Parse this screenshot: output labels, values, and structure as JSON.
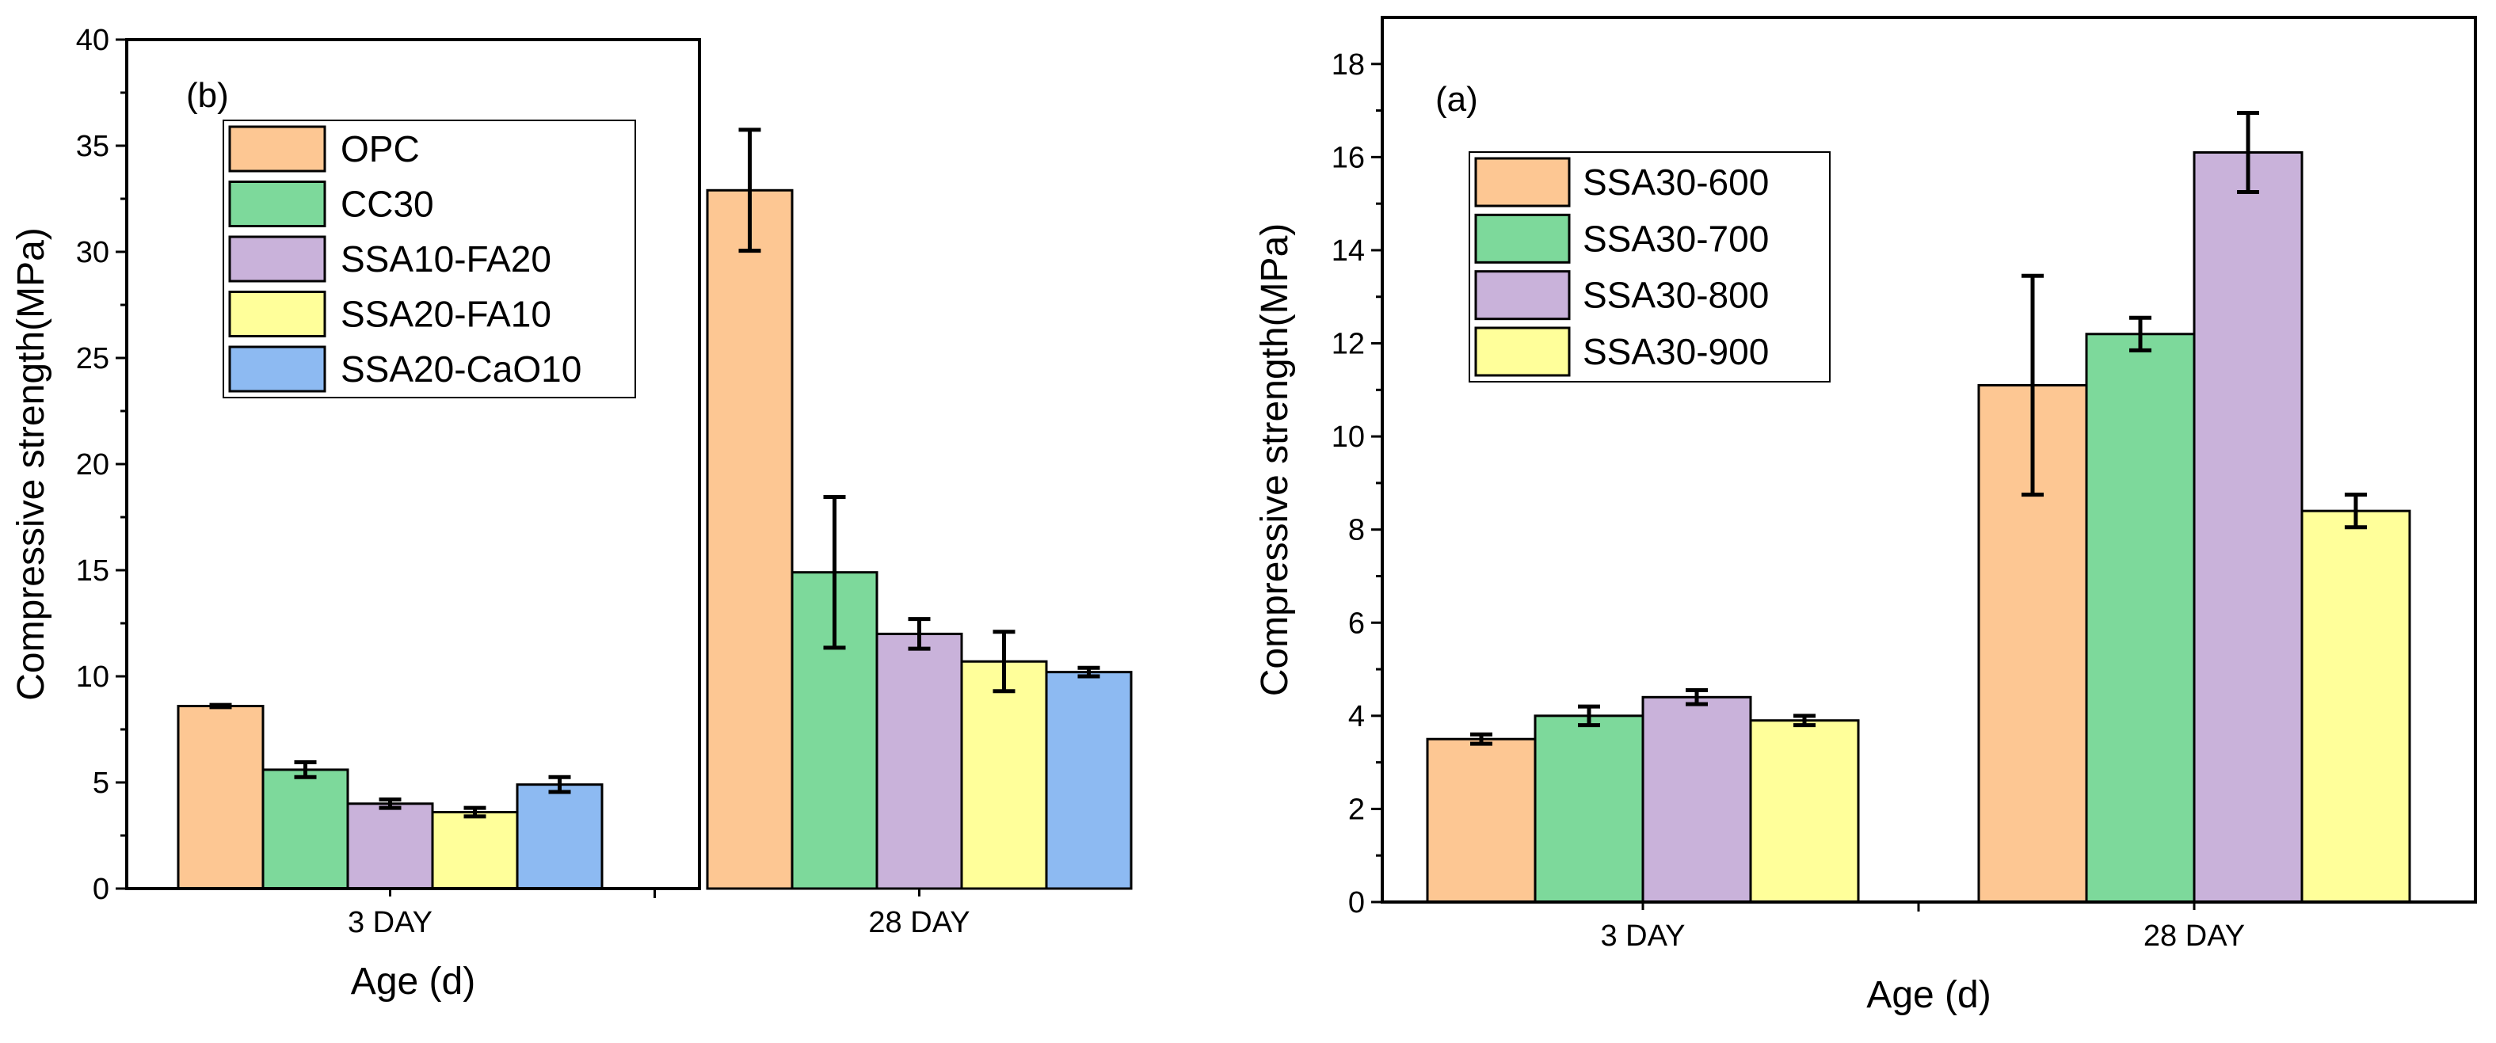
{
  "chart_data": [
    {
      "type": "bar",
      "panel_label": "(b)",
      "xlabel": "Age (d)",
      "ylabel": "Compressive strength(MPa)",
      "ylim": [
        0,
        40
      ],
      "yticks": [
        "0",
        "5",
        "10",
        "15",
        "20",
        "25",
        "30",
        "35",
        "40"
      ],
      "yminor": true,
      "categories": [
        "3 DAY",
        "28 DAY"
      ],
      "legend_position": "top-left",
      "series": [
        {
          "name": "OPC",
          "color": "#FDC793",
          "values": [
            8.6,
            32.9
          ],
          "errors": [
            0.05,
            2.85
          ]
        },
        {
          "name": "CC30",
          "color": "#7DD99B",
          "values": [
            5.6,
            14.9
          ],
          "errors": [
            0.35,
            3.55
          ]
        },
        {
          "name": "SSA10-FA20",
          "color": "#C9B2DA",
          "values": [
            4.0,
            12.0
          ],
          "errors": [
            0.2,
            0.7
          ]
        },
        {
          "name": "SSA20-FA10",
          "color": "#FFFF9A",
          "values": [
            3.6,
            10.7
          ],
          "errors": [
            0.2,
            1.4
          ]
        },
        {
          "name": "SSA20-CaO10",
          "color": "#8DBAF2",
          "values": [
            4.9,
            10.2
          ],
          "errors": [
            0.35,
            0.2
          ]
        }
      ]
    },
    {
      "type": "bar",
      "panel_label": "(a)",
      "xlabel": "Age (d)",
      "ylabel": "Compressive strength(MPa)",
      "ylim": [
        0,
        19
      ],
      "yticks": [
        "0",
        "2",
        "4",
        "6",
        "8",
        "10",
        "12",
        "14",
        "16",
        "18"
      ],
      "yminor": true,
      "categories": [
        "3 DAY",
        "28 DAY"
      ],
      "legend_position": "top-left",
      "series": [
        {
          "name": "SSA30-600",
          "color": "#FDC793",
          "values": [
            3.5,
            11.1
          ],
          "errors": [
            0.1,
            2.35
          ]
        },
        {
          "name": "SSA30-700",
          "color": "#7DD99B",
          "values": [
            4.0,
            12.2
          ],
          "errors": [
            0.2,
            0.35
          ]
        },
        {
          "name": "SSA30-800",
          "color": "#C9B2DA",
          "values": [
            4.4,
            16.1
          ],
          "errors": [
            0.15,
            0.85
          ]
        },
        {
          "name": "SSA30-900",
          "color": "#FFFF9A",
          "values": [
            3.9,
            8.4
          ],
          "errors": [
            0.1,
            0.35
          ]
        }
      ]
    }
  ]
}
